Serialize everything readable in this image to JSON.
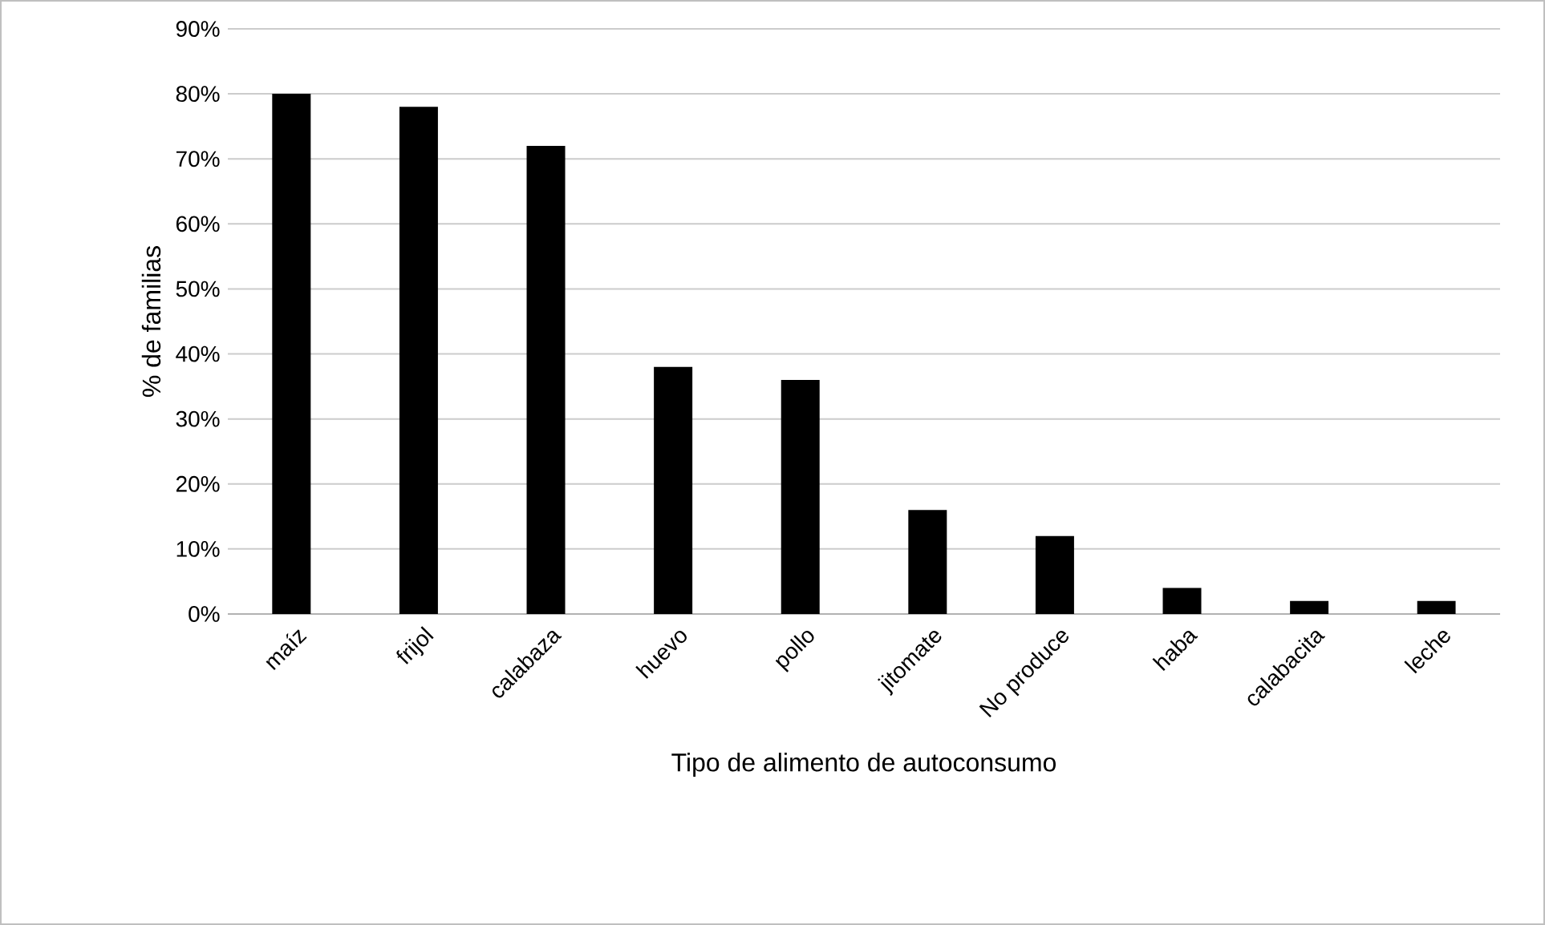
{
  "chart_data": {
    "type": "bar",
    "xlabel": "Tipo de alimento de autoconsumo",
    "ylabel": "% de familias",
    "categories": [
      "maíz",
      "frijol",
      "calabaza",
      "huevo",
      "pollo",
      "jitomate",
      "No produce",
      "haba",
      "calabacita",
      "leche"
    ],
    "values": [
      80,
      78,
      72,
      38,
      36,
      16,
      12,
      4,
      2,
      2
    ],
    "color": "#000000",
    "ylim": [
      0,
      90
    ],
    "yticks": [
      {
        "value": 0,
        "label": "0%"
      },
      {
        "value": 10,
        "label": "10%"
      },
      {
        "value": 20,
        "label": "20%"
      },
      {
        "value": 30,
        "label": "30%"
      },
      {
        "value": 40,
        "label": "40%"
      },
      {
        "value": 50,
        "label": "50%"
      },
      {
        "value": 60,
        "label": "60%"
      },
      {
        "value": 70,
        "label": "70%"
      },
      {
        "value": 80,
        "label": "80%"
      },
      {
        "value": 90,
        "label": "90%"
      }
    ],
    "grid": "y"
  }
}
